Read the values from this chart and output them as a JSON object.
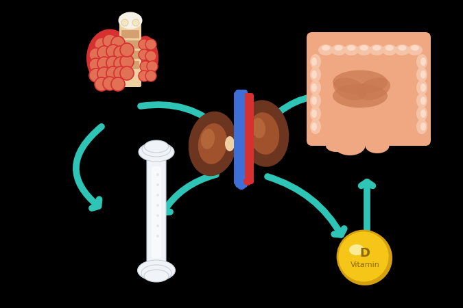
{
  "background_color": "#000000",
  "arrow_color": "#2ec4b6",
  "thyroid_color1": "#d63031",
  "thyroid_color2": "#e17055",
  "thyroid_neck_color": "#f0d0a0",
  "thyroid_neck_color2": "#d4a070",
  "kidney_color1": "#6b3520",
  "kidney_color2": "#a0522d",
  "kidney_highlight": "#c47a45",
  "kidney_vein_blue": "#3d6fd6",
  "kidney_vein_red": "#d63031",
  "intestine_color1": "#f0a882",
  "intestine_color2": "#f5c4a8",
  "intestine_inner": "#c87850",
  "intestine_spot": "#fcdcc8",
  "bone_color": "#f0f4f8",
  "bone_shadow": "#c8d0d8",
  "bone_mid": "#e8eef4",
  "vitamin_d_color1": "#f5c518",
  "vitamin_d_color2": "#d4a010",
  "vitamin_d_highlight": "#fff8c0",
  "vitamin_d_text": "#8b6800",
  "figsize": [
    6.75,
    4.5
  ],
  "dpi": 100
}
